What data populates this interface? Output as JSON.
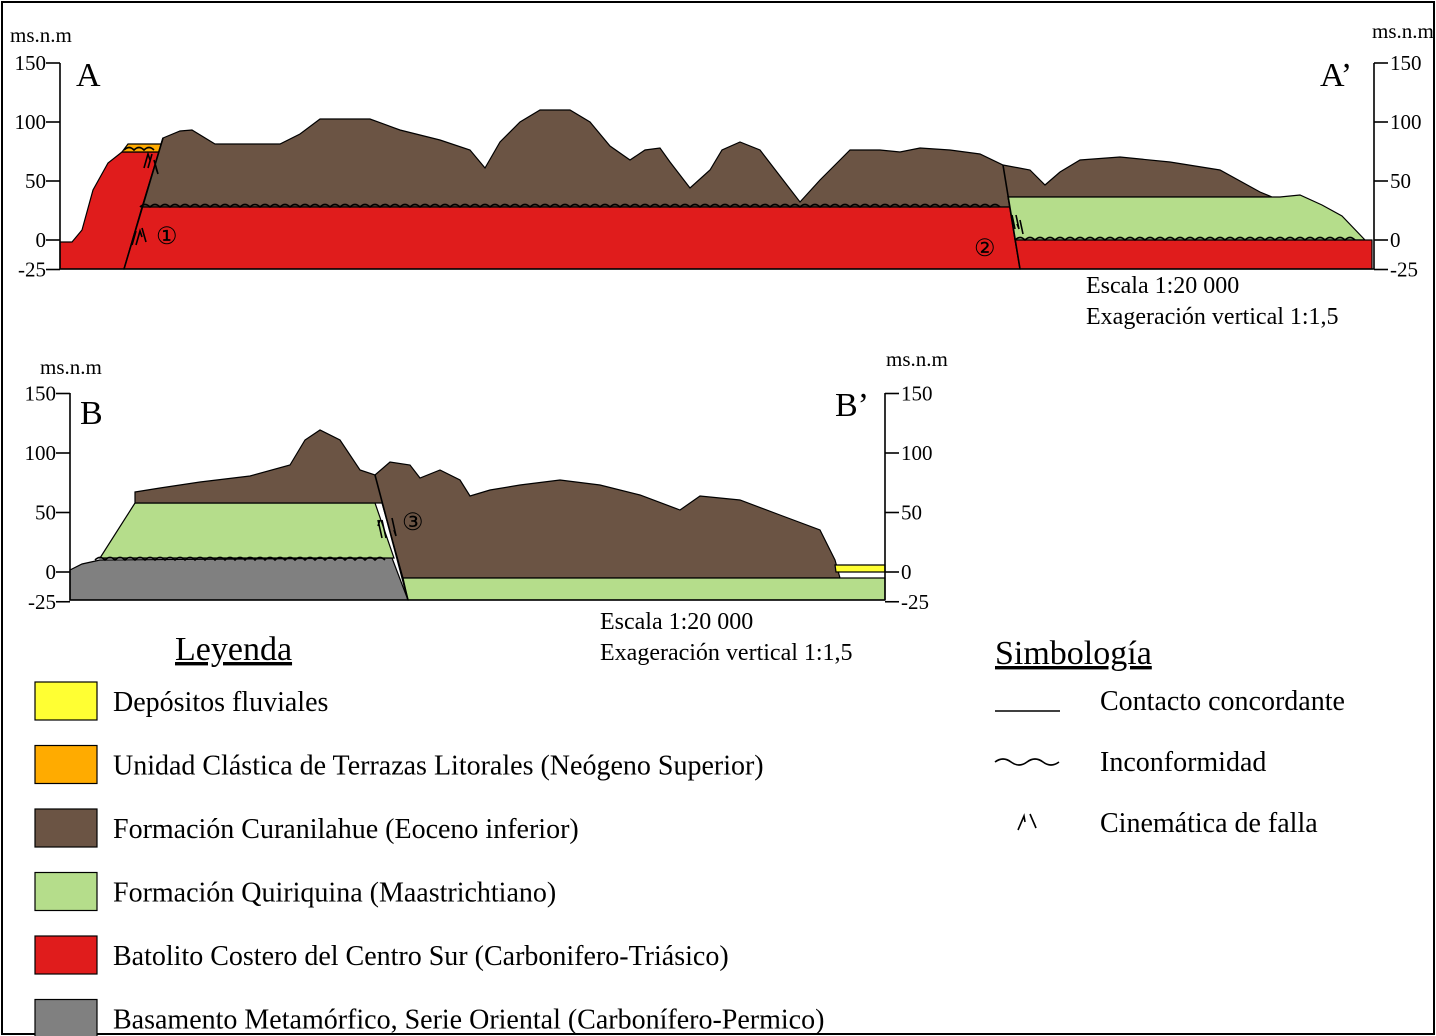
{
  "section_a": {
    "unit_left": "ms.n.m",
    "unit_right": "ms.n.m",
    "ticks_left": [
      150,
      100,
      50,
      0,
      -25
    ],
    "ticks_right": [
      150,
      100,
      50,
      0,
      -25
    ],
    "label_start": "A",
    "label_end": "A’",
    "faults": [
      "①",
      "②"
    ],
    "scale": "Escala 1:20 000",
    "exaggeration": "Exageración vertical 1:1,5"
  },
  "section_b": {
    "unit_left": "ms.n.m",
    "unit_right": "ms.n.m",
    "ticks_left": [
      150,
      100,
      50,
      0,
      -25
    ],
    "ticks_right": [
      150,
      100,
      50,
      0,
      -25
    ],
    "label_start": "B",
    "label_end": "B’",
    "faults": [
      "③"
    ],
    "scale": "Escala 1:20 000",
    "exaggeration": "Exageración vertical 1:1,5"
  },
  "legend": {
    "title": "Leyenda",
    "items": [
      {
        "label": "Depósitos fluviales",
        "color": "#ffff33"
      },
      {
        "label": "Unidad Clástica de Terrazas Litorales (Neógeno Superior)",
        "color": "#ffab00"
      },
      {
        "label": "Formación Curanilahue (Eoceno inferior)",
        "color": "#6b5444"
      },
      {
        "label": "Formación Quiriquina (Maastrichtiano)",
        "color": "#b5dd8b"
      },
      {
        "label": "Batolito Costero del Centro Sur (Carbonifero-Triásico)",
        "color": "#e01c1c"
      },
      {
        "label": "Basamento Metamórfico, Serie Oriental (Carbonífero-Permico)",
        "color": "#808080"
      }
    ]
  },
  "symbology": {
    "title": "Simbología",
    "items": [
      "Contacto concordante",
      "Inconformidad",
      "Cinemática de falla"
    ]
  }
}
